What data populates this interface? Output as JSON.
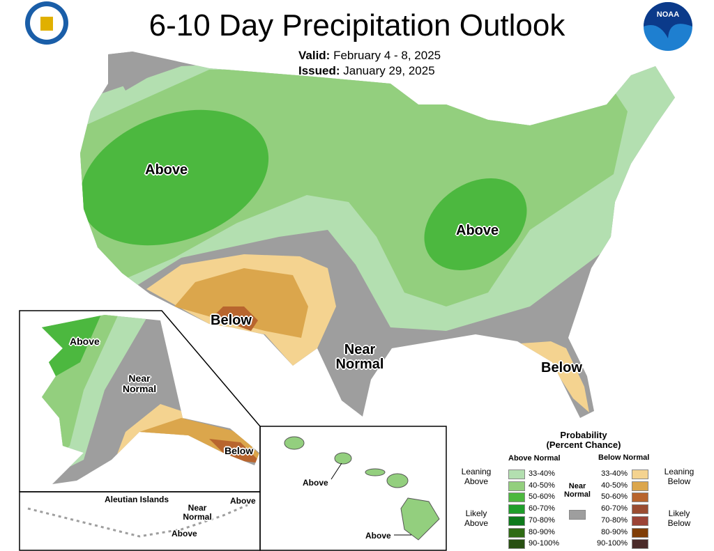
{
  "header": {
    "title": "6-10 Day Precipitation Outlook",
    "valid_label": "Valid:",
    "valid_value": "February 4 - 8, 2025",
    "issued_label": "Issued:",
    "issued_value": "January 29, 2025",
    "left_logo": "department-of-commerce-seal",
    "right_logo": "noaa-logo",
    "noaa_text": "NOAA"
  },
  "map_labels": {
    "conus_west": "Above",
    "conus_east": "Above",
    "southwest": "Below",
    "texas": "Near Normal",
    "florida": "Below",
    "alaska_west": "Above",
    "alaska_center": "Near Normal",
    "alaska_se": "Below",
    "aleutian_title": "Aleutian Islands",
    "aleutian_near": "Near Normal",
    "aleutian_above_east": "Above",
    "aleutian_above_south": "Above",
    "hawaii_oahu": "Above",
    "hawaii_big": "Above"
  },
  "legend": {
    "title": "Probability",
    "subtitle": "(Percent Chance)",
    "above_header": "Above Normal",
    "below_header": "Below Normal",
    "near": "Near Normal",
    "leaning_above": "Leaning Above",
    "likely_above": "Likely Above",
    "leaning_below": "Leaning Below",
    "likely_below": "Likely Below",
    "above": [
      {
        "range": "33-40%",
        "color": "#b3dfb0"
      },
      {
        "range": "40-50%",
        "color": "#93cf7e"
      },
      {
        "range": "50-60%",
        "color": "#4cb83f"
      },
      {
        "range": "60-70%",
        "color": "#1e9e2a"
      },
      {
        "range": "70-80%",
        "color": "#0e7a1c"
      },
      {
        "range": "80-90%",
        "color": "#2f6b14"
      },
      {
        "range": "90-100%",
        "color": "#285012"
      }
    ],
    "below": [
      {
        "range": "33-40%",
        "color": "#f4d390"
      },
      {
        "range": "40-50%",
        "color": "#dba64c"
      },
      {
        "range": "50-60%",
        "color": "#b8652e"
      },
      {
        "range": "60-70%",
        "color": "#9a4c31"
      },
      {
        "range": "70-80%",
        "color": "#9b4336"
      },
      {
        "range": "80-90%",
        "color": "#7f3d06"
      },
      {
        "range": "90-100%",
        "color": "#4a2a28"
      }
    ],
    "near_color": "#9e9e9e"
  }
}
